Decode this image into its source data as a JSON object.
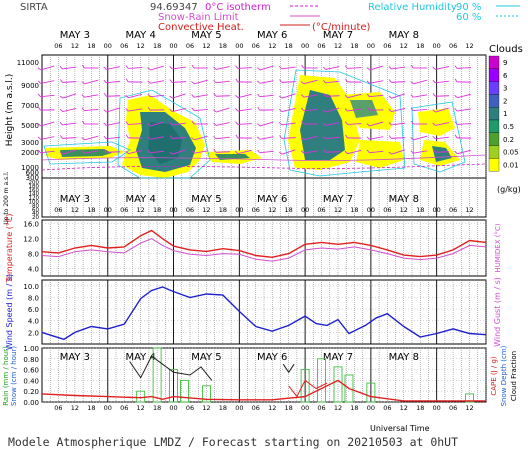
{
  "header": {
    "site": "SIRTA",
    "coords": "94.69347",
    "isotherm_label": "0°C isotherm",
    "snow_rain_label": "Snow-Rain Limit",
    "convective_label": "Convective Heat.",
    "convective_unit": "(°C/minute)",
    "rh_label": "Relative Humidity",
    "rh_90": "90 %",
    "rh_60": "60 %"
  },
  "days": [
    "MAY 3",
    "MAY 4",
    "MAY 5",
    "MAY 6",
    "MAY 7",
    "MAY 8"
  ],
  "hour_ticks": [
    "06",
    "12",
    "18",
    "00"
  ],
  "clouds": {
    "title": "Clouds",
    "unit": "(g/kg)",
    "legend_values": [
      "9",
      "6",
      "3",
      "2",
      "1",
      "0.5",
      "0.2",
      "0.05",
      "0.01"
    ],
    "legend_colors": [
      "#cc00cc",
      "#9900ff",
      "#6a3dff",
      "#4060c0",
      "#2f7f7f",
      "#1f9a6a",
      "#4f9f2f",
      "#9fcf1f",
      "#ffff00"
    ]
  },
  "panel1": {
    "ylabel": "Height  (m a.s.l.)",
    "ylabel_low": "Up to 200 m a.s.l.",
    "height_ticks": [
      "11000",
      "9000",
      "7000",
      "5000",
      "3000",
      "2000",
      "1000",
      "600",
      "300"
    ],
    "low_ticks": [
      "200",
      "180",
      "160",
      "140",
      "120",
      "100",
      "80",
      "60",
      "40",
      "20"
    ]
  },
  "panel2": {
    "ylabel": "Temperature (°C)",
    "ylabel_right": "HUMIDEX (°C)",
    "ticks": [
      "16.0",
      "12.0",
      "8.0",
      "4.0"
    ]
  },
  "panel3": {
    "ylabel": "Wind Speed (m / s)",
    "ylabel_right": "Wind Gust (m / s)",
    "ticks": [
      "10.0",
      "8.0",
      "6.0",
      "4.0",
      "2.0"
    ]
  },
  "panel4": {
    "ylabel_left": "Rain (mm / hour)",
    "ylabel_left2": "Snow (cm / hour)",
    "ylabel_right": "CAPE (J / g)",
    "ylabel_right2": "Snow Depth (cm)",
    "ylabel_right3": "Cloud Fraction",
    "ticks": [
      "1.00",
      "0.80",
      "0.60",
      "0.40",
      "0.20",
      "0.00"
    ],
    "xlabel": "Universal Time"
  },
  "footer": "Modele Atmospherique LMDZ / Forecast starting on 20210503 at 0hUT",
  "chart_data": [
    {
      "type": "line",
      "title": "Temperature",
      "x_unit": "hours since MAY 3 00UT",
      "series": [
        {
          "values": [
            [
              0,
              8.5
            ],
            [
              6,
              8.2
            ],
            [
              12,
              9.5
            ],
            [
              18,
              10.2
            ],
            [
              24,
              9.5
            ],
            [
              30,
              9.8
            ],
            [
              36,
              12.8
            ],
            [
              40,
              14.2
            ],
            [
              44,
              12.0
            ],
            [
              48,
              10.0
            ],
            [
              54,
              9.0
            ],
            [
              60,
              8.6
            ],
            [
              66,
              9.3
            ],
            [
              72,
              8.8
            ],
            [
              78,
              7.5
            ],
            [
              84,
              7.0
            ],
            [
              90,
              8.0
            ],
            [
              96,
              10.5
            ],
            [
              102,
              11.0
            ],
            [
              108,
              10.5
            ],
            [
              114,
              11.0
            ],
            [
              120,
              10.2
            ],
            [
              126,
              9.0
            ],
            [
              132,
              7.6
            ],
            [
              138,
              7.2
            ],
            [
              144,
              7.6
            ],
            [
              150,
              9.0
            ],
            [
              156,
              11.5
            ],
            [
              162,
              11.0
            ]
          ]
        },
        {
          "values": [
            [
              0,
              7.5
            ],
            [
              6,
              7.2
            ],
            [
              12,
              8.5
            ],
            [
              18,
              9.0
            ],
            [
              24,
              8.5
            ],
            [
              30,
              8.2
            ],
            [
              36,
              10.8
            ],
            [
              40,
              12.0
            ],
            [
              44,
              10.2
            ],
            [
              48,
              8.8
            ],
            [
              54,
              7.8
            ],
            [
              60,
              7.5
            ],
            [
              66,
              8.0
            ],
            [
              72,
              7.8
            ],
            [
              78,
              6.5
            ],
            [
              84,
              6.0
            ],
            [
              90,
              6.8
            ],
            [
              96,
              9.0
            ],
            [
              102,
              9.5
            ],
            [
              108,
              9.2
            ],
            [
              114,
              9.8
            ],
            [
              120,
              9.0
            ],
            [
              126,
              8.0
            ],
            [
              132,
              6.8
            ],
            [
              138,
              6.4
            ],
            [
              144,
              6.8
            ],
            [
              150,
              8.0
            ],
            [
              156,
              10.2
            ],
            [
              162,
              9.8
            ]
          ]
        }
      ],
      "ylim": [
        2,
        17
      ]
    },
    {
      "type": "line",
      "title": "Wind Speed",
      "x_unit": "hours since MAY 3 00UT",
      "series": [
        {
          "values": [
            [
              0,
              2.0
            ],
            [
              4,
              1.4
            ],
            [
              8,
              0.8
            ],
            [
              12,
              2.0
            ],
            [
              18,
              3.0
            ],
            [
              24,
              2.6
            ],
            [
              30,
              3.4
            ],
            [
              36,
              7.8
            ],
            [
              40,
              9.2
            ],
            [
              44,
              9.8
            ],
            [
              48,
              9.0
            ],
            [
              54,
              8.0
            ],
            [
              60,
              8.6
            ],
            [
              66,
              8.4
            ],
            [
              72,
              5.6
            ],
            [
              78,
              3.0
            ],
            [
              84,
              2.2
            ],
            [
              90,
              3.2
            ],
            [
              96,
              4.8
            ],
            [
              100,
              3.5
            ],
            [
              104,
              3.2
            ],
            [
              108,
              4.2
            ],
            [
              112,
              1.8
            ],
            [
              118,
              3.2
            ],
            [
              122,
              4.5
            ],
            [
              126,
              5.2
            ],
            [
              132,
              3.0
            ],
            [
              138,
              1.2
            ],
            [
              144,
              1.8
            ],
            [
              150,
              2.6
            ],
            [
              156,
              1.8
            ],
            [
              162,
              1.6
            ]
          ]
        }
      ],
      "ylim": [
        0,
        11
      ]
    },
    {
      "type": "line",
      "title": "Rain / CAPE",
      "x_unit": "hours since MAY 3 00UT",
      "series": [
        {
          "values": [
            [
              0,
              0.15
            ],
            [
              12,
              0.12
            ],
            [
              24,
              0.1
            ],
            [
              36,
              0.08
            ],
            [
              40,
              0.1
            ],
            [
              44,
              0.05
            ],
            [
              48,
              0.1
            ],
            [
              60,
              0.05
            ],
            [
              72,
              0.04
            ],
            [
              84,
              0.04
            ],
            [
              96,
              0.1
            ],
            [
              108,
              0.4
            ],
            [
              112,
              0.25
            ],
            [
              120,
              0.1
            ],
            [
              132,
              0.02
            ],
            [
              144,
              0.02
            ],
            [
              162,
              0.02
            ]
          ]
        },
        {
          "values": [
            [
              32,
              0.75
            ],
            [
              36,
              0.45
            ],
            [
              40,
              0.85
            ],
            [
              44,
              0.7
            ],
            [
              48,
              0.55
            ],
            [
              54,
              0.5
            ],
            [
              58,
              0.65
            ],
            [
              62,
              0.4
            ]
          ]
        },
        {
          "values": [
            [
              88,
              0.7
            ],
            [
              90,
              0.55
            ],
            [
              92,
              0.7
            ]
          ]
        },
        {
          "values": [
            [
              90,
              0.3
            ],
            [
              93,
              0.1
            ],
            [
              96,
              0.4
            ],
            [
              100,
              0.25
            ],
            [
              104,
              0.35
            ]
          ]
        }
      ],
      "bars": [
        [
          36,
          0.2
        ],
        [
          42,
          1.0
        ],
        [
          48,
          0.6
        ],
        [
          52,
          0.4
        ],
        [
          60,
          0.3
        ],
        [
          96,
          0.6
        ],
        [
          102,
          0.8
        ],
        [
          108,
          0.65
        ],
        [
          112,
          0.5
        ],
        [
          120,
          0.35
        ],
        [
          156,
          0.15
        ]
      ],
      "ylim": [
        0,
        1
      ]
    }
  ]
}
